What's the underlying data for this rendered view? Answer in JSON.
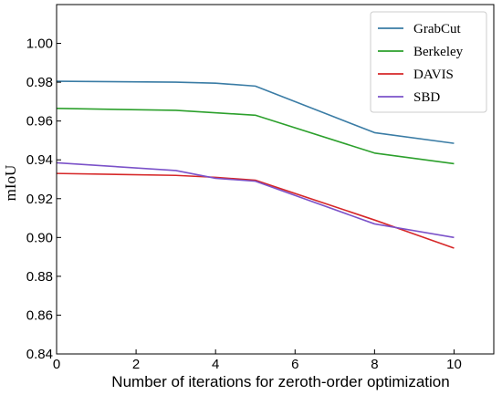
{
  "chart_data": {
    "type": "line",
    "title": "",
    "xlabel": "Number of iterations for zeroth-order optimization",
    "ylabel": "mIoU",
    "xlim": [
      0,
      11
    ],
    "ylim": [
      0.84,
      1.02
    ],
    "xticks": [
      0,
      2,
      4,
      6,
      8,
      10
    ],
    "yticks": [
      0.84,
      0.86,
      0.88,
      0.9,
      0.92,
      0.94,
      0.96,
      0.98,
      1.0
    ],
    "xtick_labels": [
      "0",
      "2",
      "4",
      "6",
      "8",
      "10"
    ],
    "ytick_labels": [
      "0.84",
      "0.86",
      "0.88",
      "0.90",
      "0.92",
      "0.94",
      "0.96",
      "0.98",
      "1.00"
    ],
    "grid": false,
    "legend_position": "top-right",
    "series": [
      {
        "name": "GrabCut",
        "color": "#3a7ca5",
        "x": [
          0,
          3,
          4,
          5,
          8,
          10
        ],
        "y": [
          0.9805,
          0.98,
          0.9795,
          0.978,
          0.954,
          0.9485
        ]
      },
      {
        "name": "Berkeley",
        "color": "#2ca02c",
        "x": [
          0,
          3,
          5,
          8,
          10
        ],
        "y": [
          0.9665,
          0.9655,
          0.963,
          0.9435,
          0.938
        ]
      },
      {
        "name": "DAVIS",
        "color": "#d62728",
        "x": [
          0,
          3,
          4,
          5,
          8,
          10
        ],
        "y": [
          0.933,
          0.932,
          0.931,
          0.9295,
          0.909,
          0.8945
        ]
      },
      {
        "name": "SBD",
        "color": "#7b52c9",
        "x": [
          0,
          3,
          4,
          5,
          8,
          10
        ],
        "y": [
          0.9385,
          0.9345,
          0.9305,
          0.929,
          0.907,
          0.9
        ]
      }
    ]
  }
}
